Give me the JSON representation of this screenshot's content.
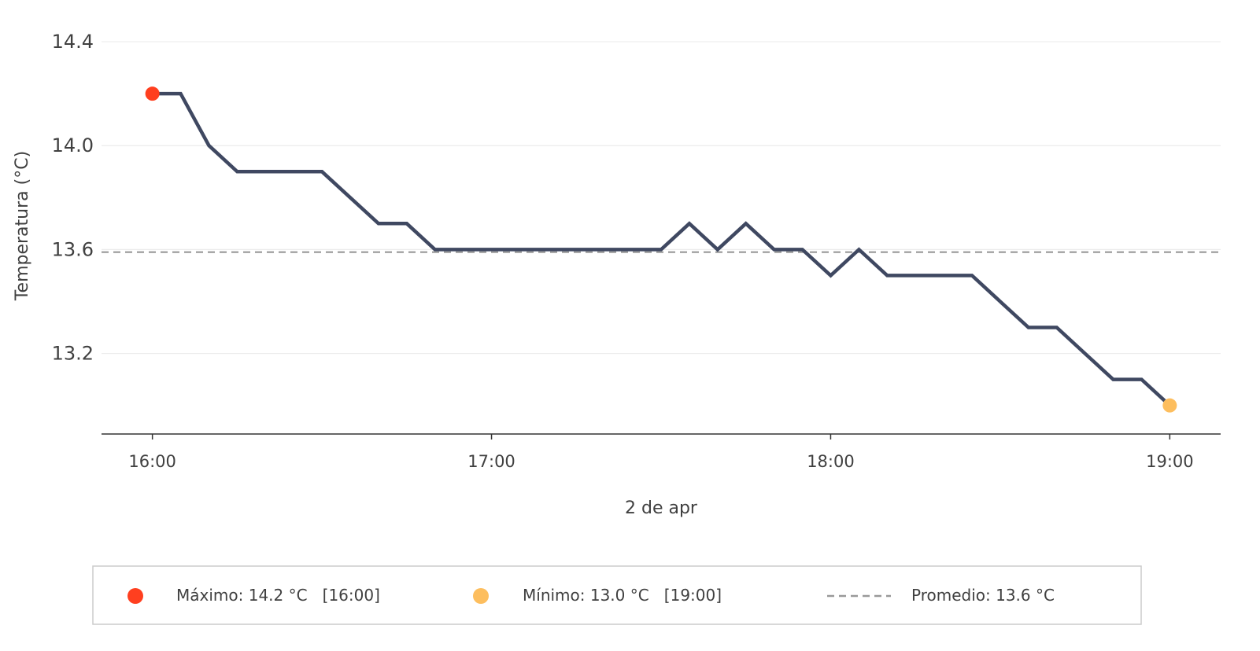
{
  "chart_data": {
    "type": "line",
    "xlabel": "2 de apr",
    "ylabel": "Temperatura (°C)",
    "x_tick_labels": [
      "16:00",
      "17:00",
      "18:00",
      "19:00"
    ],
    "y_tick_labels": [
      "13.2",
      "13.6",
      "14.0",
      "14.4"
    ],
    "y_ticks": [
      13.2,
      13.6,
      14.0,
      14.4
    ],
    "x_ticks": [
      "16:00",
      "17:00",
      "18:00",
      "19:00"
    ],
    "xlim": [
      "15:51",
      "19:09"
    ],
    "ylim": [
      12.89,
      14.5
    ],
    "grid": "horizontal",
    "series": [
      {
        "color": "#3f4861",
        "x": [
          "16:00",
          "16:05",
          "16:10",
          "16:15",
          "16:20",
          "16:25",
          "16:30",
          "16:35",
          "16:40",
          "16:45",
          "16:50",
          "16:55",
          "17:00",
          "17:05",
          "17:10",
          "17:15",
          "17:20",
          "17:25",
          "17:30",
          "17:35",
          "17:40",
          "17:45",
          "17:50",
          "17:55",
          "18:00",
          "18:05",
          "18:10",
          "18:15",
          "18:20",
          "18:25",
          "18:30",
          "18:35",
          "18:40",
          "18:45",
          "18:50",
          "18:55",
          "19:00"
        ],
        "values": [
          14.2,
          14.2,
          14.0,
          13.9,
          13.9,
          13.9,
          13.9,
          13.8,
          13.7,
          13.7,
          13.6,
          13.6,
          13.6,
          13.6,
          13.6,
          13.6,
          13.6,
          13.6,
          13.6,
          13.7,
          13.6,
          13.7,
          13.6,
          13.6,
          13.5,
          13.6,
          13.5,
          13.5,
          13.5,
          13.5,
          13.4,
          13.3,
          13.3,
          13.2,
          13.1,
          13.1,
          13.0
        ]
      }
    ],
    "average_line": {
      "value": 13.59,
      "color": "#999999"
    },
    "max_point": {
      "x": "16:00",
      "value": 14.2,
      "color": "#ff3f1f"
    },
    "min_point": {
      "x": "19:00",
      "value": 13.0,
      "color": "#fdbe5e"
    },
    "legend": {
      "placement": "bottom",
      "items": [
        {
          "label": "Máximo: 14.2 °C   [16:00]",
          "marker": "dot",
          "color": "#ff3f1f"
        },
        {
          "label": "Mínimo: 13.0 °C   [19:00]",
          "marker": "dot",
          "color": "#fdbe5e"
        },
        {
          "label": "Promedio: 13.6 °C",
          "marker": "dashed-line",
          "color": "#999999"
        }
      ]
    }
  }
}
